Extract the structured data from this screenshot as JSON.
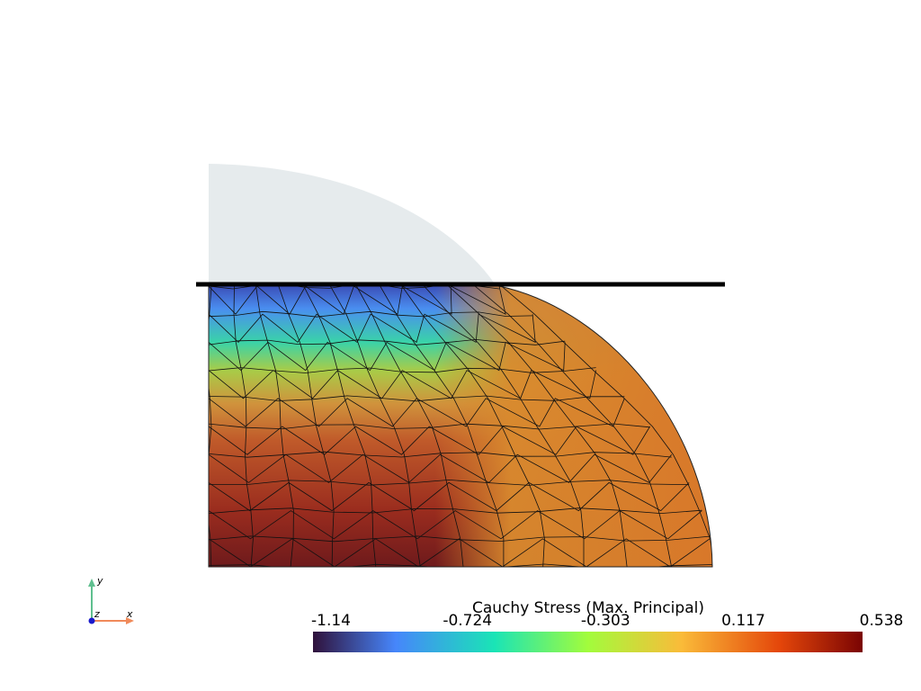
{
  "colorbar": {
    "title": "Cauchy Stress (Max. Principal)",
    "range": [
      -1.14,
      0.538
    ],
    "ticks": [
      -1.14,
      -0.724,
      -0.303,
      0.117,
      0.538
    ]
  },
  "axes": {
    "x": "x",
    "y": "y",
    "z": "z"
  }
}
